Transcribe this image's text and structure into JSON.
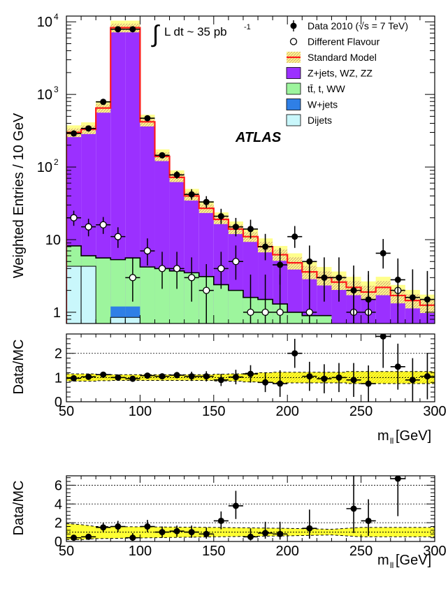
{
  "chart_data": [
    {
      "type": "histogram",
      "ylabel": "Weighted Entries / 10 GeV",
      "xlim": [
        50,
        300
      ],
      "ylim": [
        0.7,
        12000
      ],
      "yscale": "log",
      "xticks": [
        50,
        100,
        150,
        200,
        250,
        300
      ],
      "yticks": [
        {
          "v": 1,
          "label": "1"
        },
        {
          "v": 10,
          "label": "10"
        },
        {
          "v": 100,
          "label": "10",
          "exp": "2"
        },
        {
          "v": 1000,
          "label": "10",
          "exp": "3"
        },
        {
          "v": 10000,
          "label": "10",
          "exp": "4"
        }
      ],
      "lumi_text": "L dt ~ 35 pb",
      "lumi_exp": "-1",
      "experiment": "ATLAS",
      "legend_position": "top-right",
      "legend": [
        {
          "key": "data",
          "label": "Data 2010 (√s = 7 TeV)"
        },
        {
          "key": "df",
          "label": "Different Flavour"
        },
        {
          "key": "sm",
          "label": "Standard Model"
        },
        {
          "key": "zjets",
          "label": "Z+jets, WZ, ZZ"
        },
        {
          "key": "ttbar",
          "label": "tt̄, t, WW"
        },
        {
          "key": "wjets",
          "label": "W+jets"
        },
        {
          "key": "dijets",
          "label": "Dijets"
        }
      ],
      "colors": {
        "zjets": "#9b30ff",
        "ttbar": "#9df59d",
        "wjets": "#2f7fe6",
        "dijets": "#c9f7fb",
        "sm": "#ff1a1a",
        "band": "#ffff8c",
        "band_hatch": "#d2a07a"
      },
      "bins_low": [
        50,
        60,
        70,
        80,
        90,
        100,
        110,
        120,
        130,
        140,
        150,
        160,
        170,
        180,
        190,
        200,
        210,
        220,
        230,
        240,
        250,
        260,
        270,
        280,
        290
      ],
      "dijets": [
        4.3,
        4.3,
        0,
        0.85,
        0.85,
        0,
        0,
        0,
        0,
        0,
        0,
        0,
        0,
        0,
        0,
        0,
        0,
        0,
        0,
        0,
        0,
        0,
        0,
        0,
        0
      ],
      "wjets": [
        0,
        0,
        0,
        0.35,
        0.35,
        0,
        0,
        0,
        0,
        0,
        0,
        0,
        0,
        0,
        0,
        0,
        0,
        0,
        0,
        0,
        0,
        0,
        0,
        0,
        0
      ],
      "ttbar_top": [
        8.2,
        6.0,
        5.6,
        5.3,
        5.6,
        4.2,
        4.0,
        3.7,
        3.5,
        3.1,
        2.4,
        2.0,
        1.6,
        1.5,
        1.3,
        1.0,
        0.9,
        0.9,
        0,
        0,
        0,
        0,
        0,
        0,
        0
      ],
      "sm_total": [
        300,
        330,
        650,
        8300,
        8300,
        420,
        140,
        72,
        40,
        27,
        19,
        14,
        11,
        8,
        6.2,
        4.8,
        3.6,
        3.0,
        2.6,
        2.2,
        1.9,
        2.2,
        1.7,
        1.45,
        1.25
      ],
      "band_rel": [
        0.25,
        0.25,
        0.25,
        0.25,
        0.25,
        0.25,
        0.25,
        0.25,
        0.25,
        0.25,
        0.25,
        0.27,
        0.28,
        0.3,
        0.32,
        0.35,
        0.38,
        0.4,
        0.4,
        0.4,
        0.4,
        0.4,
        0.4,
        0.4,
        0.4
      ],
      "data": {
        "x": [
          55,
          65,
          75,
          85,
          95,
          105,
          115,
          125,
          135,
          145,
          155,
          165,
          175,
          185,
          195,
          205,
          215,
          225,
          235,
          245,
          255,
          265,
          275,
          285,
          295
        ],
        "y": [
          290,
          340,
          790,
          7900,
          7900,
          470,
          145,
          78,
          42,
          33,
          21,
          15,
          14,
          8,
          4.5,
          11,
          5,
          3,
          3,
          2,
          1.5,
          6.5,
          2.8,
          1.6,
          1.5
        ],
        "err_up": [
          18,
          19,
          29,
          90,
          90,
          22,
          13,
          10,
          7.5,
          6.7,
          5.6,
          4.9,
          4.8,
          4.0,
          3.2,
          4.4,
          3.3,
          2.7,
          2.7,
          2.4,
          2.2,
          3.7,
          2.7,
          2.3,
          2.2
        ],
        "err_dn": [
          17,
          18,
          28,
          89,
          89,
          22,
          12,
          9,
          6.5,
          5.7,
          4.6,
          3.9,
          3.7,
          2.8,
          2.1,
          3.3,
          2.2,
          1.6,
          1.6,
          1.3,
          0.9,
          2.5,
          1.6,
          1.1,
          1.0
        ]
      },
      "different_flavour": {
        "x": [
          55,
          65,
          75,
          85,
          95,
          105,
          115,
          125,
          135,
          145,
          155,
          165,
          175,
          185,
          195,
          215,
          245,
          255,
          275
        ],
        "y": [
          20,
          15,
          16,
          11,
          3,
          7,
          4,
          4,
          3,
          2,
          4,
          5,
          1,
          1,
          1,
          1,
          1,
          1,
          2
        ],
        "err_up": [
          5.0,
          4.4,
          4.5,
          3.8,
          2.7,
          3.4,
          2.8,
          2.8,
          2.7,
          2.6,
          2.8,
          3.3,
          2.3,
          2.3,
          2.3,
          2.3,
          2.3,
          2.3,
          2.6
        ],
        "err_dn": [
          4.5,
          3.9,
          4.0,
          3.3,
          1.6,
          2.6,
          1.9,
          1.9,
          1.6,
          1.3,
          1.9,
          2.2,
          0.8,
          0.8,
          0.8,
          0.8,
          0.8,
          0.8,
          1.3
        ]
      }
    },
    {
      "type": "ratio",
      "ylabel": "Data/MC",
      "xlabel": "m",
      "xlabel_sub": "ll",
      "xlabel_unit": " [GeV]",
      "xlim": [
        50,
        300
      ],
      "ylim": [
        0,
        2.8
      ],
      "yticks": [
        0,
        1,
        2
      ],
      "xticks": [
        50,
        100,
        150,
        200,
        250,
        300
      ],
      "band_rel": [
        0.15,
        0.15,
        0.13,
        0.12,
        0.12,
        0.12,
        0.12,
        0.12,
        0.12,
        0.12,
        0.14,
        0.15,
        0.18,
        0.2,
        0.22,
        0.22,
        0.22,
        0.22,
        0.22,
        0.25,
        0.25,
        0.25,
        0.25,
        0.25,
        0.25
      ],
      "points": {
        "x": [
          55,
          65,
          75,
          85,
          95,
          105,
          115,
          125,
          135,
          145,
          155,
          165,
          175,
          185,
          195,
          205,
          215,
          225,
          235,
          245,
          255,
          265,
          275,
          285,
          295
        ],
        "y": [
          0.97,
          1.03,
          1.12,
          1.0,
          0.95,
          1.08,
          1.05,
          1.1,
          1.05,
          1.05,
          0.9,
          1.02,
          1.15,
          0.8,
          0.75,
          2.0,
          1.05,
          0.95,
          1.0,
          0.9,
          0.75,
          2.7,
          1.45,
          0.9,
          1.05
        ],
        "err_up": [
          0.07,
          0.07,
          0.07,
          0.02,
          0.02,
          0.05,
          0.09,
          0.13,
          0.19,
          0.21,
          0.25,
          0.3,
          0.36,
          0.4,
          0.55,
          0.6,
          0.6,
          0.6,
          0.6,
          0.7,
          0.75,
          1.3,
          0.95,
          0.9,
          0.95
        ],
        "err_dn": [
          0.07,
          0.07,
          0.07,
          0.02,
          0.02,
          0.05,
          0.09,
          0.13,
          0.19,
          0.21,
          0.25,
          0.3,
          0.36,
          0.4,
          0.55,
          0.6,
          0.6,
          0.6,
          0.6,
          0.7,
          0.75,
          1.3,
          0.95,
          0.9,
          0.95
        ]
      }
    },
    {
      "type": "ratio",
      "ylabel": "Data/MC",
      "xlabel": "m",
      "xlabel_sub": "ll",
      "xlabel_unit": " [GeV]",
      "xlim": [
        50,
        300
      ],
      "ylim": [
        0,
        7
      ],
      "yticks": [
        0,
        2,
        4,
        6
      ],
      "xticks": [
        50,
        100,
        150,
        200,
        250,
        300
      ],
      "band": {
        "x": [
          50,
          60,
          70,
          150,
          200,
          230,
          250,
          300
        ],
        "upper": [
          1.9,
          1.8,
          1.6,
          1.5,
          1.4,
          1.3,
          1.5,
          1.5
        ],
        "lower": [
          0.2,
          0.2,
          0.3,
          0.5,
          0.6,
          0.7,
          0.5,
          0.5
        ]
      },
      "points": {
        "x": [
          55,
          65,
          75,
          85,
          95,
          105,
          115,
          125,
          135,
          145,
          155,
          165,
          175,
          185,
          195,
          215,
          245,
          255,
          275
        ],
        "y": [
          0.4,
          0.5,
          1.5,
          1.6,
          0.4,
          1.6,
          1.0,
          1.1,
          1.0,
          0.8,
          2.2,
          3.8,
          0.5,
          0.9,
          0.8,
          1.4,
          3.5,
          2.2,
          6.7
        ],
        "err_up": [
          0.2,
          0.3,
          0.5,
          0.6,
          0.5,
          0.7,
          0.6,
          0.6,
          0.7,
          0.7,
          1.0,
          1.6,
          0.9,
          1.2,
          1.3,
          2.0,
          3.5,
          2.3,
          4.0
        ],
        "err_dn": [
          0.2,
          0.3,
          0.5,
          0.6,
          0.3,
          0.6,
          0.6,
          0.6,
          0.6,
          0.5,
          0.9,
          1.4,
          0.4,
          0.6,
          0.6,
          1.1,
          2.6,
          1.6,
          4.0
        ]
      }
    }
  ]
}
